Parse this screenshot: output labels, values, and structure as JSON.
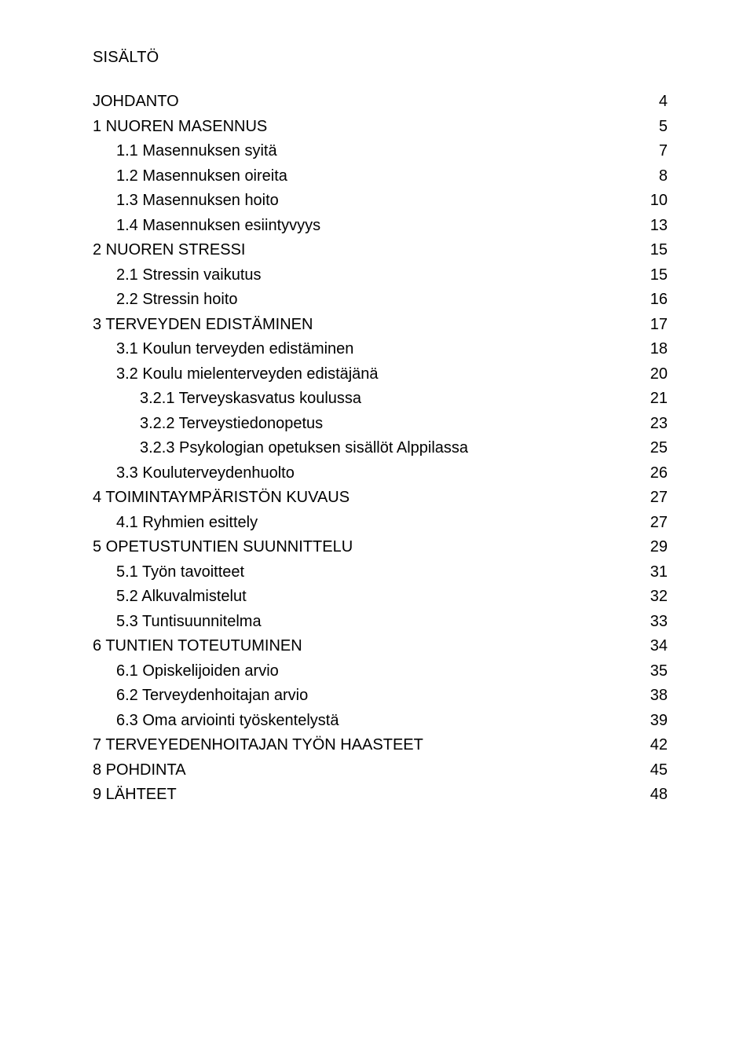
{
  "title": "SISÄLTÖ",
  "font": {
    "family": "Arial",
    "size_pt": 15,
    "color": "#000000"
  },
  "background_color": "#ffffff",
  "toc": [
    {
      "label": "JOHDANTO",
      "page": "4",
      "indent": 0
    },
    {
      "label": "1 NUOREN MASENNUS",
      "page": "5",
      "indent": 0
    },
    {
      "label": "1.1 Masennuksen syitä",
      "page": "7",
      "indent": 1
    },
    {
      "label": "1.2 Masennuksen oireita",
      "page": "8",
      "indent": 1
    },
    {
      "label": "1.3 Masennuksen hoito",
      "page": "10",
      "indent": 1
    },
    {
      "label": "1.4 Masennuksen esiintyvyys",
      "page": "13",
      "indent": 1
    },
    {
      "label": "2 NUOREN STRESSI",
      "page": "15",
      "indent": 0
    },
    {
      "label": "2.1 Stressin vaikutus",
      "page": "15",
      "indent": 1
    },
    {
      "label": "2.2 Stressin hoito",
      "page": "16",
      "indent": 1
    },
    {
      "label": "3 TERVEYDEN EDISTÄMINEN",
      "page": "17",
      "indent": 0
    },
    {
      "label": "3.1 Koulun terveyden edistäminen",
      "page": "18",
      "indent": 1
    },
    {
      "label": "3.2 Koulu mielenterveyden edistäjänä",
      "page": "20",
      "indent": 1
    },
    {
      "label": "3.2.1 Terveyskasvatus koulussa",
      "page": "21",
      "indent": 2
    },
    {
      "label": "3.2.2 Terveystiedonopetus",
      "page": "23",
      "indent": 2
    },
    {
      "label": "3.2.3 Psykologian opetuksen sisällöt Alppilassa",
      "page": "25",
      "indent": 2
    },
    {
      "label": "3.3 Kouluterveydenhuolto",
      "page": "26",
      "indent": 1
    },
    {
      "label": "4 TOIMINTAYMPÄRISTÖN KUVAUS",
      "page": "27",
      "indent": 0
    },
    {
      "label": "4.1 Ryhmien esittely",
      "page": "27",
      "indent": 1
    },
    {
      "label": "5 OPETUSTUNTIEN SUUNNITTELU",
      "page": "29",
      "indent": 0
    },
    {
      "label": "5.1 Työn tavoitteet",
      "page": "31",
      "indent": 1
    },
    {
      "label": "5.2 Alkuvalmistelut",
      "page": "32",
      "indent": 1
    },
    {
      "label": "5.3 Tuntisuunnitelma",
      "page": "33",
      "indent": 1
    },
    {
      "label": "6 TUNTIEN TOTEUTUMINEN",
      "page": "34",
      "indent": 0
    },
    {
      "label": "6.1 Opiskelijoiden arvio",
      "page": "35",
      "indent": 1
    },
    {
      "label": "6.2 Terveydenhoitajan arvio",
      "page": "38",
      "indent": 1
    },
    {
      "label": "6.3 Oma arviointi työskentelystä",
      "page": "39",
      "indent": 1
    },
    {
      "label": "7 TERVEYEDENHOITAJAN TYÖN HAASTEET",
      "page": "42",
      "indent": 0
    },
    {
      "label": "8 POHDINTA",
      "page": "45",
      "indent": 0
    },
    {
      "label": "9 LÄHTEET",
      "page": "48",
      "indent": 0
    }
  ]
}
